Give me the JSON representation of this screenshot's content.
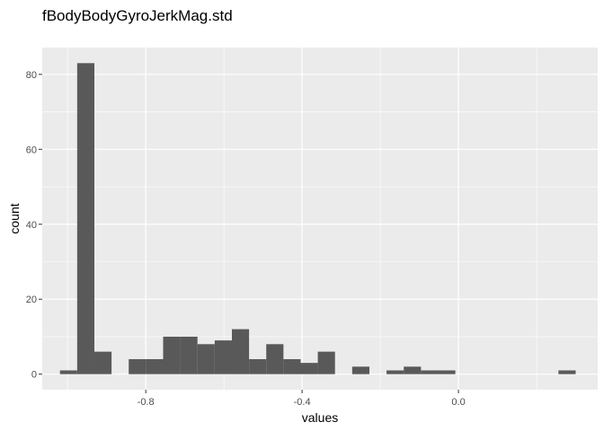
{
  "chart_data": {
    "type": "bar",
    "title": "fBodyBodyGyroJerkMag.std",
    "xlabel": "values",
    "ylabel": "count",
    "xlim": [
      -1.0648,
      0.3563
    ],
    "ylim": [
      -4.15,
      87.15
    ],
    "x_ticks": [
      -0.8,
      -0.4,
      0.0
    ],
    "x_tick_labels": [
      "-0.8",
      "-0.4",
      "0.0"
    ],
    "y_ticks": [
      0,
      20,
      40,
      60,
      80
    ],
    "y_tick_labels": [
      "0",
      "20",
      "40",
      "60",
      "80"
    ],
    "grid": true,
    "bins": [
      {
        "x0": -1.0194,
        "x1": -0.9754,
        "count": 1
      },
      {
        "x0": -0.9754,
        "x1": -0.9314,
        "count": 83
      },
      {
        "x0": -0.9314,
        "x1": -0.8875,
        "count": 6
      },
      {
        "x0": -0.8875,
        "x1": -0.8435,
        "count": 0
      },
      {
        "x0": -0.8435,
        "x1": -0.7995,
        "count": 4
      },
      {
        "x0": -0.7995,
        "x1": -0.7555,
        "count": 4
      },
      {
        "x0": -0.7555,
        "x1": -0.7116,
        "count": 10
      },
      {
        "x0": -0.7116,
        "x1": -0.6676,
        "count": 10
      },
      {
        "x0": -0.6676,
        "x1": -0.6236,
        "count": 8
      },
      {
        "x0": -0.6236,
        "x1": -0.5796,
        "count": 9
      },
      {
        "x0": -0.5796,
        "x1": -0.5357,
        "count": 12
      },
      {
        "x0": -0.5357,
        "x1": -0.4917,
        "count": 4
      },
      {
        "x0": -0.4917,
        "x1": -0.4477,
        "count": 8
      },
      {
        "x0": -0.4477,
        "x1": -0.4037,
        "count": 4
      },
      {
        "x0": -0.4037,
        "x1": -0.3598,
        "count": 3
      },
      {
        "x0": -0.3598,
        "x1": -0.3158,
        "count": 6
      },
      {
        "x0": -0.3158,
        "x1": -0.2718,
        "count": 0
      },
      {
        "x0": -0.2718,
        "x1": -0.2278,
        "count": 2
      },
      {
        "x0": -0.2278,
        "x1": -0.1839,
        "count": 0
      },
      {
        "x0": -0.1839,
        "x1": -0.1399,
        "count": 1
      },
      {
        "x0": -0.1399,
        "x1": -0.0959,
        "count": 2
      },
      {
        "x0": -0.0959,
        "x1": -0.0519,
        "count": 1
      },
      {
        "x0": -0.0519,
        "x1": -0.008,
        "count": 1
      },
      {
        "x0": -0.008,
        "x1": 0.036,
        "count": 0
      },
      {
        "x0": 0.036,
        "x1": 0.08,
        "count": 0
      },
      {
        "x0": 0.08,
        "x1": 0.124,
        "count": 0
      },
      {
        "x0": 0.124,
        "x1": 0.1679,
        "count": 0
      },
      {
        "x0": 0.1679,
        "x1": 0.2119,
        "count": 0
      },
      {
        "x0": 0.2119,
        "x1": 0.2559,
        "count": 0
      },
      {
        "x0": 0.2559,
        "x1": 0.2999,
        "count": 1
      }
    ],
    "colors": {
      "panel_background": "#ebebeb",
      "grid_major": "#ffffff",
      "bar_fill": "#595959",
      "tick_text": "#4d4d4d",
      "tick_mark": "#333333"
    }
  }
}
